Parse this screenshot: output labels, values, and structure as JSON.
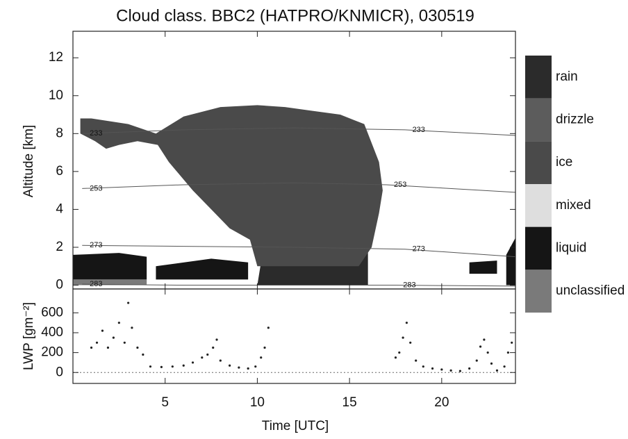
{
  "chart_data": [
    {
      "type": "classification",
      "title": "Cloud class. BBC2 (HATPRO/KNMICR), 030519",
      "y_label": "Altitude [km]",
      "xlim": [
        0,
        24
      ],
      "xticks": [
        5,
        10,
        15,
        20
      ],
      "ylim": [
        -0.2,
        13.4
      ],
      "yticks": [
        0,
        2,
        4,
        6,
        8,
        10,
        12
      ],
      "classes": [
        {
          "name": "rain",
          "color": "#2b2b2b",
          "regions": [
            {
              "x": [
                10,
                16,
                16,
                13,
                10.3
              ],
              "y": [
                0,
                0,
                1.8,
                2,
                1.8
              ]
            }
          ]
        },
        {
          "name": "drizzle",
          "color": "#5c5c5c",
          "regions": []
        },
        {
          "name": "ice",
          "color": "#4a4a4a",
          "regions": [
            {
              "x": [
                0.4,
                1,
                3,
                4.5,
                6,
                8,
                10,
                11.5,
                13,
                14.5,
                15.8,
                16.6,
                16.8,
                16.6,
                16.2,
                15.5,
                10,
                9.6,
                8.5,
                7.5,
                6.5,
                5.2,
                4.6,
                3.5,
                2.5,
                1.8,
                1.2,
                0.4
              ],
              "y": [
                8.8,
                8.8,
                8.5,
                8.0,
                8.9,
                9.4,
                9.5,
                9.4,
                9.2,
                9.0,
                8.5,
                6.5,
                5,
                3.8,
                2,
                1,
                1,
                2.4,
                3,
                4,
                5,
                6.5,
                7.4,
                7.6,
                7.4,
                7.2,
                7.6,
                8
              ]
            }
          ]
        },
        {
          "name": "mixed",
          "color": "#dedede",
          "regions": []
        },
        {
          "name": "liquid",
          "color": "#151515",
          "regions": [
            {
              "x": [
                0,
                4,
                4,
                2.5,
                0
              ],
              "y": [
                0.3,
                0.3,
                1.5,
                1.7,
                1.6
              ]
            },
            {
              "x": [
                4.5,
                9.5,
                9.5,
                7.5,
                4.5
              ],
              "y": [
                0.3,
                0.3,
                1.2,
                1.4,
                1.0
              ]
            },
            {
              "x": [
                21.5,
                23,
                23,
                21.5
              ],
              "y": [
                0.6,
                0.6,
                1.3,
                1.2
              ]
            },
            {
              "x": [
                23.5,
                24,
                24,
                23.5
              ],
              "y": [
                0,
                0,
                2.5,
                1.6
              ]
            }
          ]
        },
        {
          "name": "unclassified",
          "color": "#7a7a7a",
          "regions": [
            {
              "x": [
                0,
                4,
                4,
                0
              ],
              "y": [
                0,
                0,
                0.3,
                0.3
              ]
            }
          ]
        }
      ],
      "isotherms": [
        {
          "level": 233,
          "x": [
            0.5,
            6,
            12,
            18,
            24
          ],
          "y": [
            8.0,
            8.2,
            8.3,
            8.2,
            7.9
          ]
        },
        {
          "level": 253,
          "x": [
            0.5,
            6,
            12,
            17,
            24
          ],
          "y": [
            5.1,
            5.3,
            5.4,
            5.3,
            4.9
          ]
        },
        {
          "level": 273,
          "x": [
            0.5,
            6,
            12,
            18,
            24
          ],
          "y": [
            2.1,
            2.05,
            2.0,
            1.9,
            1.5
          ]
        },
        {
          "level": 283,
          "x": [
            0.5,
            6,
            12,
            17.5,
            24
          ],
          "y": [
            0.05,
            0,
            0,
            0,
            -0.05
          ]
        }
      ]
    },
    {
      "type": "scatter",
      "x_label": "Time [UTC]",
      "y_label": "LWP [gm⁻²]",
      "xlim": [
        0,
        24
      ],
      "xticks": [
        5,
        10,
        15,
        20
      ],
      "ylim": [
        -110,
        840
      ],
      "yticks": [
        0,
        200,
        400,
        600
      ],
      "reference_line": 0,
      "color": "#222222",
      "x": [
        1.0,
        1.3,
        1.6,
        1.9,
        2.2,
        2.5,
        2.8,
        3.0,
        3.2,
        3.5,
        3.8,
        4.2,
        4.8,
        5.4,
        6.0,
        6.5,
        7.0,
        7.3,
        7.6,
        7.8,
        8.0,
        8.5,
        9.0,
        9.5,
        9.9,
        10.2,
        10.4,
        10.6,
        17.5,
        17.7,
        17.9,
        18.1,
        18.3,
        18.6,
        19.0,
        19.5,
        20.0,
        20.5,
        21.0,
        21.5,
        21.9,
        22.1,
        22.3,
        22.5,
        22.7,
        23.0,
        23.4,
        23.6,
        23.8
      ],
      "values": [
        250,
        300,
        420,
        250,
        350,
        500,
        300,
        700,
        450,
        250,
        180,
        60,
        55,
        60,
        70,
        100,
        150,
        180,
        250,
        330,
        120,
        70,
        50,
        40,
        60,
        150,
        250,
        450,
        150,
        200,
        350,
        500,
        300,
        120,
        60,
        40,
        30,
        20,
        15,
        40,
        120,
        260,
        330,
        200,
        90,
        20,
        60,
        200,
        300
      ]
    }
  ]
}
